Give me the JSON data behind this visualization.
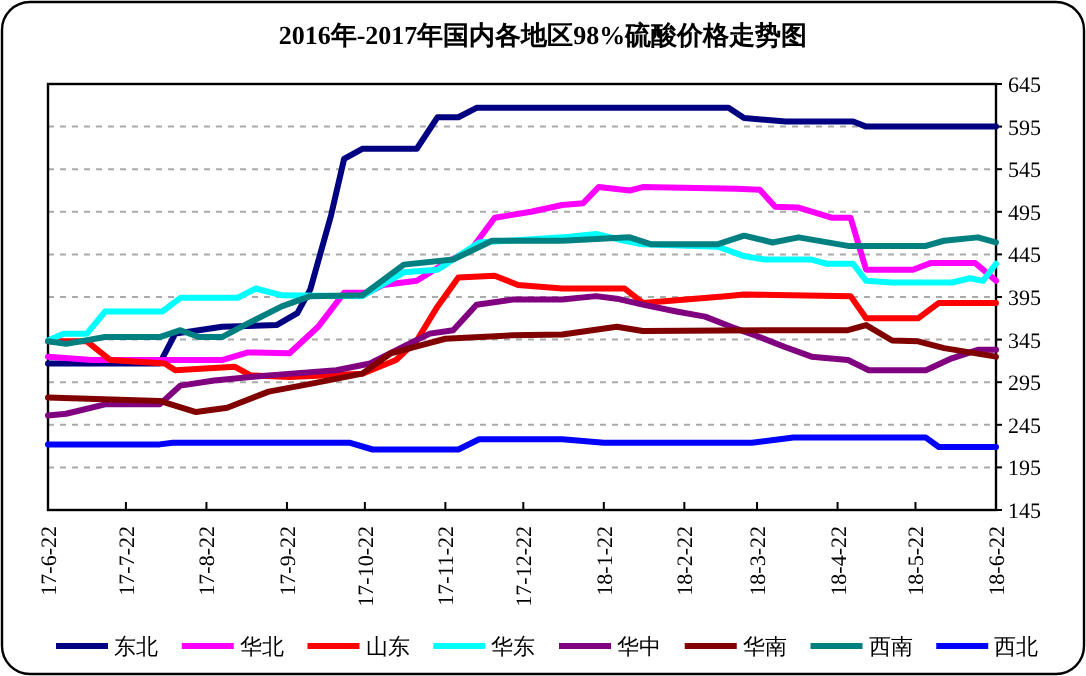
{
  "chart_data": {
    "type": "line",
    "title": "2016年-2017年国内各地区98%硫酸价格走势图",
    "xlim": [
      "2017-06-22",
      "2018-06-22"
    ],
    "xticks": [
      {
        "value": "2017-06-22",
        "label": "17-6-22"
      },
      {
        "value": "2017-07-22",
        "label": "17-7-22"
      },
      {
        "value": "2017-08-22",
        "label": "17-8-22"
      },
      {
        "value": "2017-09-22",
        "label": "17-9-22"
      },
      {
        "value": "2017-10-22",
        "label": "17-10-22"
      },
      {
        "value": "2017-11-22",
        "label": "17-11-22"
      },
      {
        "value": "2017-12-22",
        "label": "17-12-22"
      },
      {
        "value": "2018-01-22",
        "label": "18-1-22"
      },
      {
        "value": "2018-02-22",
        "label": "18-2-22"
      },
      {
        "value": "2018-03-22",
        "label": "18-3-22"
      },
      {
        "value": "2018-04-22",
        "label": "18-4-22"
      },
      {
        "value": "2018-05-22",
        "label": "18-5-22"
      },
      {
        "value": "2018-06-22",
        "label": "18-6-22"
      }
    ],
    "ylim": [
      145,
      645
    ],
    "yticks": [
      145,
      195,
      245,
      295,
      345,
      395,
      445,
      495,
      545,
      595,
      645
    ],
    "grid": "y",
    "legend": "bottom",
    "marker": "none",
    "line_style": "solid",
    "series": [
      {
        "name": "东北",
        "color": "#000080",
        "x": [
          "2017-06-22",
          "2017-08-04",
          "2017-08-10",
          "2017-08-19",
          "2017-08-28",
          "2017-09-18",
          "2017-09-26",
          "2017-10-01",
          "2017-10-09",
          "2017-10-14",
          "2017-10-21",
          "2017-11-11",
          "2017-11-19",
          "2017-11-27",
          "2017-12-04",
          "2018-03-11",
          "2018-03-17",
          "2018-04-02",
          "2018-04-28",
          "2018-05-03",
          "2018-06-22"
        ],
        "values": [
          317,
          317,
          352,
          356,
          360,
          362,
          376,
          404,
          491,
          557,
          569,
          569,
          606,
          606,
          617,
          617,
          605,
          601,
          601,
          595,
          595
        ]
      },
      {
        "name": "华北",
        "color": "#ff00ff",
        "x": [
          "2017-06-22",
          "2017-07-09",
          "2017-08-28",
          "2017-09-07",
          "2017-09-23",
          "2017-10-04",
          "2017-10-14",
          "2017-10-23",
          "2017-10-29",
          "2017-11-11",
          "2017-11-22",
          "2017-12-02",
          "2017-12-11",
          "2017-12-25",
          "2018-01-06",
          "2018-01-14",
          "2018-01-20",
          "2018-02-01",
          "2018-02-06",
          "2018-03-14",
          "2018-03-23",
          "2018-03-29",
          "2018-04-07",
          "2018-04-20",
          "2018-04-27",
          "2018-05-03",
          "2018-05-21",
          "2018-05-28",
          "2018-06-14",
          "2018-06-22"
        ],
        "values": [
          325,
          321,
          321,
          330,
          329,
          360,
          400,
          400,
          409,
          414,
          435,
          451,
          488,
          495,
          503,
          505,
          524,
          520,
          524,
          522,
          521,
          501,
          500,
          488,
          488,
          427,
          427,
          435,
          435,
          414
        ]
      },
      {
        "name": "山东",
        "color": "#ff0000",
        "x": [
          "2017-06-22",
          "2017-07-07",
          "2017-07-16",
          "2017-08-06",
          "2017-08-10",
          "2017-09-02",
          "2017-09-08",
          "2017-09-23",
          "2017-10-21",
          "2017-11-03",
          "2017-11-11",
          "2017-11-19",
          "2017-11-27",
          "2017-12-11",
          "2017-12-20",
          "2018-01-06",
          "2018-01-30",
          "2018-02-06",
          "2018-03-10",
          "2018-03-17",
          "2018-04-27",
          "2018-05-03",
          "2018-05-23",
          "2018-05-31",
          "2018-06-22"
        ],
        "values": [
          343,
          343,
          321,
          317,
          309,
          313,
          303,
          301,
          305,
          321,
          344,
          384,
          418,
          420,
          409,
          405,
          405,
          388,
          396,
          398,
          396,
          370,
          370,
          388,
          388
        ]
      },
      {
        "name": "华东",
        "color": "#00ffff",
        "x": [
          "2017-06-22",
          "2017-06-28",
          "2017-07-07",
          "2017-07-14",
          "2017-08-05",
          "2017-08-12",
          "2017-09-03",
          "2017-09-10",
          "2017-09-20",
          "2017-10-21",
          "2017-11-06",
          "2017-11-19",
          "2017-12-05",
          "2018-01-06",
          "2018-01-19",
          "2018-01-30",
          "2018-02-06",
          "2018-03-07",
          "2018-03-17",
          "2018-03-25",
          "2018-04-12",
          "2018-04-18",
          "2018-04-28",
          "2018-05-03",
          "2018-05-13",
          "2018-06-05",
          "2018-06-12",
          "2018-06-17",
          "2018-06-22"
        ],
        "values": [
          344,
          352,
          352,
          378,
          378,
          394,
          394,
          405,
          397,
          396,
          424,
          427,
          459,
          465,
          469,
          461,
          457,
          454,
          443,
          439,
          439,
          434,
          434,
          414,
          412,
          412,
          417,
          414,
          434
        ]
      },
      {
        "name": "华中",
        "color": "#800080",
        "x": [
          "2017-06-22",
          "2017-06-29",
          "2017-07-14",
          "2017-08-04",
          "2017-08-12",
          "2017-08-25",
          "2017-09-15",
          "2017-10-11",
          "2017-10-24",
          "2017-11-06",
          "2017-11-16",
          "2017-11-25",
          "2017-12-04",
          "2017-12-18",
          "2018-01-06",
          "2018-01-19",
          "2018-01-27",
          "2018-02-06",
          "2018-02-19",
          "2018-03-02",
          "2018-03-12",
          "2018-03-23",
          "2018-04-02",
          "2018-04-12",
          "2018-04-26",
          "2018-05-04",
          "2018-05-26",
          "2018-06-05",
          "2018-06-15",
          "2018-06-22"
        ],
        "values": [
          256,
          258,
          269,
          269,
          291,
          297,
          303,
          309,
          317,
          337,
          352,
          356,
          386,
          392,
          392,
          396,
          393,
          386,
          378,
          372,
          360,
          348,
          336,
          325,
          321,
          309,
          309,
          323,
          333,
          333
        ]
      },
      {
        "name": "华南",
        "color": "#800000",
        "x": [
          "2017-06-22",
          "2017-08-04",
          "2017-08-18",
          "2017-08-30",
          "2017-09-15",
          "2017-10-01",
          "2017-10-21",
          "2017-11-01",
          "2017-11-11",
          "2017-11-22",
          "2017-12-18",
          "2018-01-06",
          "2018-01-27",
          "2018-02-06",
          "2018-03-25",
          "2018-04-26",
          "2018-05-03",
          "2018-05-13",
          "2018-05-23",
          "2018-06-02",
          "2018-06-22"
        ],
        "values": [
          277,
          273,
          260,
          265,
          284,
          293,
          305,
          329,
          337,
          346,
          350,
          351,
          360,
          355,
          356,
          356,
          362,
          344,
          343,
          335,
          325
        ]
      },
      {
        "name": "西南",
        "color": "#008080",
        "x": [
          "2017-06-22",
          "2017-06-29",
          "2017-07-14",
          "2017-08-04",
          "2017-08-12",
          "2017-08-19",
          "2017-08-28",
          "2017-09-07",
          "2017-09-20",
          "2017-10-01",
          "2017-10-21",
          "2017-11-06",
          "2017-11-25",
          "2017-12-10",
          "2018-01-06",
          "2018-02-01",
          "2018-02-09",
          "2018-03-07",
          "2018-03-17",
          "2018-03-28",
          "2018-04-07",
          "2018-04-26",
          "2018-05-26",
          "2018-06-02",
          "2018-06-15",
          "2018-06-22"
        ],
        "values": [
          343,
          340,
          348,
          348,
          356,
          348,
          348,
          364,
          384,
          396,
          397,
          433,
          439,
          461,
          461,
          465,
          457,
          457,
          467,
          459,
          465,
          455,
          455,
          461,
          465,
          459
        ]
      },
      {
        "name": "西北",
        "color": "#0000ff",
        "x": [
          "2017-06-22",
          "2017-08-04",
          "2017-08-09",
          "2017-10-16",
          "2017-10-25",
          "2017-11-27",
          "2017-12-05",
          "2018-01-06",
          "2018-01-22",
          "2018-03-20",
          "2018-04-05",
          "2018-05-26",
          "2018-05-31",
          "2018-06-22"
        ],
        "values": [
          222,
          222,
          224,
          224,
          216,
          216,
          228,
          228,
          224,
          224,
          230,
          230,
          219,
          219
        ]
      }
    ]
  }
}
